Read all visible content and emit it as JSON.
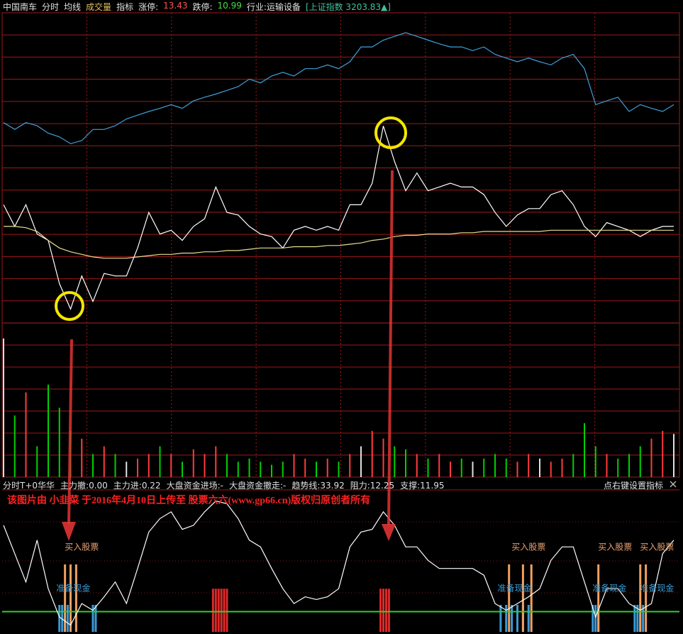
{
  "header": {
    "items": [
      {
        "text": "中国南车",
        "color": "#e0e0e0"
      },
      {
        "text": "分时",
        "color": "#e0e0e0"
      },
      {
        "text": "均线",
        "color": "#e0e0e0"
      },
      {
        "text": "成交量",
        "color": "#e0c060"
      },
      {
        "text": "指标",
        "color": "#e0e0e0"
      },
      {
        "text": "涨停:",
        "color": "#e0e0e0"
      },
      {
        "text": "13.43",
        "color": "#ff5050"
      },
      {
        "text": "跌停:",
        "color": "#e0e0e0"
      },
      {
        "text": "10.99",
        "color": "#40e040"
      },
      {
        "text": "行业:运输设备",
        "color": "#e0e0e0"
      },
      {
        "text": "[上证指数 3203.83▲]",
        "color": "#40c0a0"
      }
    ]
  },
  "indicator_header": {
    "items": [
      {
        "text": "分时T+0华华",
        "color": "#e0e0e0"
      },
      {
        "text": "主力撤:0.00",
        "color": "#e0e0e0"
      },
      {
        "text": "主力进:0.22",
        "color": "#e0e0e0"
      },
      {
        "text": "大盘资金进场:-",
        "color": "#e0e0e0"
      },
      {
        "text": "大盘资金撤走:-",
        "color": "#e0e0e0"
      },
      {
        "text": "趋势线:33.92",
        "color": "#e0e0e0"
      },
      {
        "text": "阻力:12.25",
        "color": "#e0e0e0"
      },
      {
        "text": "支撑:11.95",
        "color": "#e0e0e0"
      }
    ],
    "hint": "点右键设置指标"
  },
  "watermark": "该图片由 小韭菜 于2016年4月10日上传至 股票六六(www.gp66.cn)版权归原创者所有",
  "chart_data": [
    {
      "type": "line",
      "xlim": [
        0,
        240
      ],
      "ylim": [
        10.99,
        13.43
      ],
      "y2lim": [
        3170,
        3220
      ],
      "grid": true,
      "x": [
        0,
        4,
        8,
        12,
        16,
        20,
        24,
        28,
        32,
        36,
        40,
        44,
        48,
        52,
        56,
        60,
        64,
        68,
        72,
        76,
        80,
        84,
        88,
        92,
        96,
        100,
        104,
        108,
        112,
        116,
        120,
        124,
        128,
        132,
        136,
        140,
        144,
        148,
        152,
        156,
        160,
        164,
        168,
        172,
        176,
        180,
        184,
        188,
        192,
        196,
        200,
        204,
        208,
        212,
        216,
        220,
        224,
        228,
        232,
        236,
        240
      ],
      "series": [
        {
          "color": "#ffffff",
          "values": [
            11.92,
            11.75,
            11.92,
            11.69,
            11.64,
            11.3,
            11.1,
            11.36,
            11.16,
            11.38,
            11.36,
            11.36,
            11.58,
            11.86,
            11.69,
            11.72,
            11.64,
            11.75,
            11.81,
            12.06,
            11.86,
            11.84,
            11.75,
            11.69,
            11.67,
            11.58,
            11.72,
            11.75,
            11.72,
            11.75,
            11.72,
            11.92,
            11.92,
            12.09,
            12.54,
            12.26,
            12.03,
            12.17,
            12.03,
            12.06,
            12.09,
            12.06,
            12.06,
            12.0,
            11.86,
            11.75,
            11.84,
            11.89,
            11.89,
            12.0,
            12.03,
            11.92,
            11.75,
            11.67,
            11.78,
            11.75,
            11.72,
            11.67,
            11.72,
            11.75,
            11.75
          ]
        },
        {
          "color": "#e8e090",
          "values": [
            11.75,
            11.75,
            11.74,
            11.71,
            11.64,
            11.58,
            11.55,
            11.53,
            11.51,
            11.5,
            11.5,
            11.5,
            11.51,
            11.52,
            11.53,
            11.53,
            11.54,
            11.54,
            11.55,
            11.55,
            11.56,
            11.56,
            11.57,
            11.58,
            11.58,
            11.58,
            11.59,
            11.59,
            11.59,
            11.6,
            11.6,
            11.61,
            11.62,
            11.64,
            11.65,
            11.67,
            11.68,
            11.68,
            11.69,
            11.69,
            11.69,
            11.7,
            11.7,
            11.71,
            11.71,
            11.71,
            11.71,
            11.71,
            11.71,
            11.72,
            11.72,
            11.72,
            11.72,
            11.72,
            11.72,
            11.72,
            11.72,
            11.72,
            11.72,
            11.72,
            11.72
          ]
        },
        {
          "color": "#3fa0d8",
          "axis": "y2",
          "values": [
            3202.3,
            3201.2,
            3202.3,
            3201.8,
            3200.6,
            3200.0,
            3198.9,
            3199.4,
            3201.2,
            3201.2,
            3201.8,
            3202.9,
            3203.5,
            3204.1,
            3204.6,
            3205.2,
            3204.6,
            3205.8,
            3206.4,
            3206.9,
            3207.5,
            3208.1,
            3209.3,
            3208.7,
            3209.8,
            3210.4,
            3209.8,
            3211.0,
            3211.0,
            3211.6,
            3211.0,
            3212.1,
            3214.5,
            3214.5,
            3215.6,
            3216.2,
            3216.8,
            3216.2,
            3215.6,
            3215.0,
            3214.5,
            3214.5,
            3213.9,
            3214.5,
            3213.3,
            3212.7,
            3212.1,
            3212.7,
            3212.1,
            3211.6,
            3212.7,
            3213.3,
            3211.0,
            3205.2,
            3205.8,
            3206.4,
            3204.1,
            3205.2,
            3204.6,
            3204.1,
            3205.2
          ]
        }
      ]
    },
    {
      "type": "bar",
      "xlim": [
        0,
        240
      ],
      "ylim": [
        0,
        100
      ],
      "up_color": "#ff3c3c",
      "down_color": "#00d000",
      "flat_color": "#e0e0e0",
      "x": [
        0,
        4,
        8,
        12,
        16,
        20,
        24,
        28,
        32,
        36,
        40,
        44,
        48,
        52,
        56,
        60,
        64,
        68,
        72,
        76,
        80,
        84,
        88,
        92,
        96,
        100,
        104,
        108,
        112,
        116,
        120,
        124,
        128,
        132,
        136,
        140,
        144,
        148,
        152,
        156,
        160,
        164,
        168,
        172,
        176,
        180,
        184,
        188,
        192,
        196,
        200,
        204,
        208,
        212,
        216,
        220,
        224,
        228,
        232,
        236,
        240
      ],
      "values": [
        90,
        40,
        55,
        20,
        60,
        45,
        30,
        25,
        15,
        20,
        15,
        10,
        12,
        15,
        20,
        15,
        10,
        18,
        15,
        20,
        15,
        10,
        12,
        10,
        8,
        10,
        15,
        12,
        10,
        12,
        10,
        15,
        20,
        30,
        25,
        20,
        18,
        15,
        12,
        15,
        10,
        12,
        10,
        12,
        15,
        12,
        10,
        15,
        12,
        10,
        12,
        15,
        35,
        20,
        15,
        12,
        15,
        20,
        25,
        30,
        28
      ]
    },
    {
      "type": "signal",
      "xlim": [
        0,
        240
      ],
      "ylim": [
        0,
        100
      ],
      "level": 15,
      "level_color": "#30d030",
      "x": [
        0,
        4,
        8,
        12,
        16,
        20,
        24,
        28,
        32,
        36,
        40,
        44,
        48,
        52,
        56,
        60,
        64,
        68,
        72,
        76,
        80,
        84,
        88,
        92,
        96,
        100,
        104,
        108,
        112,
        116,
        120,
        124,
        128,
        132,
        136,
        140,
        144,
        148,
        152,
        156,
        160,
        164,
        168,
        172,
        176,
        180,
        184,
        188,
        192,
        196,
        200,
        204,
        208,
        212,
        216,
        220,
        224,
        228,
        232,
        236,
        240
      ],
      "series": [
        {
          "color": "#ffffff",
          "values": [
            79,
            58,
            37,
            68,
            32,
            11,
            5,
            21,
            16,
            26,
            37,
            21,
            47,
            74,
            84,
            89,
            76,
            79,
            89,
            97,
            95,
            84,
            68,
            63,
            47,
            32,
            21,
            26,
            24,
            26,
            32,
            63,
            74,
            76,
            89,
            79,
            63,
            63,
            53,
            47,
            47,
            47,
            47,
            42,
            21,
            16,
            21,
            26,
            32,
            53,
            63,
            63,
            37,
            11,
            32,
            32,
            21,
            16,
            21,
            58,
            68
          ]
        }
      ],
      "signals": [
        {
          "color": "#3a9ad8",
          "x": [
            20,
            21,
            22,
            23,
            32,
            33,
            178,
            180,
            182,
            184,
            186,
            188,
            211,
            212,
            213,
            226,
            227,
            228,
            229
          ],
          "values": [
            20,
            20,
            20,
            20,
            20,
            20,
            20,
            20,
            20,
            20,
            20,
            20,
            20,
            20,
            20,
            20,
            20,
            20,
            20
          ]
        },
        {
          "color": "#f0a060",
          "x": [
            22,
            24,
            26,
            181,
            186,
            189,
            213,
            228,
            230
          ],
          "values": [
            50,
            50,
            50,
            50,
            50,
            50,
            50,
            50,
            50
          ]
        },
        {
          "color": "#e02828",
          "x": [
            75,
            76,
            77,
            78,
            79,
            80,
            135,
            136,
            137,
            138
          ],
          "values": [
            32,
            32,
            32,
            32,
            32,
            32,
            32,
            32,
            32,
            32
          ]
        }
      ],
      "annotations": [
        {
          "text": "买入股票",
          "color": "#e8a070",
          "x": [
            28,
            188,
            219,
            234
          ]
        },
        {
          "text": "准备现金",
          "color": "#3a9ad8",
          "x": [
            25,
            183,
            217,
            234
          ]
        }
      ]
    }
  ]
}
